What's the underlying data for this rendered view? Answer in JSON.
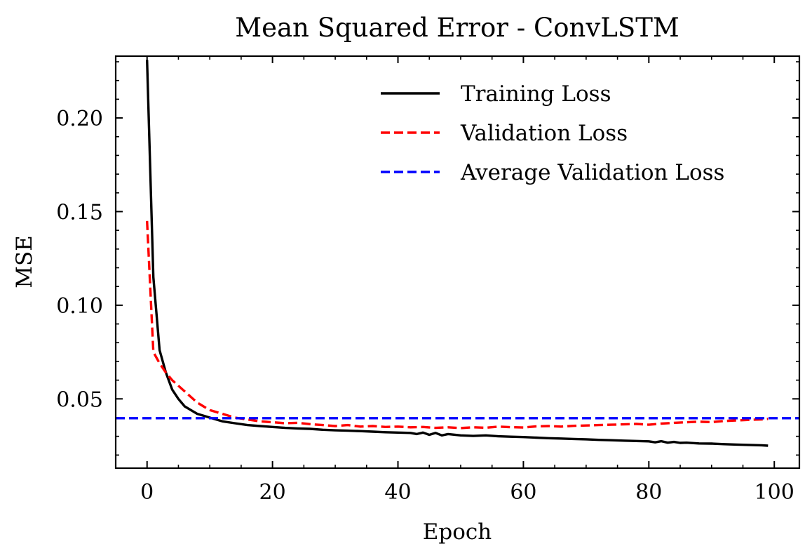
{
  "chart_data": {
    "type": "line",
    "title": "Mean Squared Error - ConvLSTM",
    "xlabel": "Epoch",
    "ylabel": "MSE",
    "xlim": [
      -5,
      104
    ],
    "ylim": [
      0.013,
      0.233
    ],
    "x_ticks": [
      0,
      20,
      40,
      60,
      80,
      100
    ],
    "x_tick_labels": [
      "0",
      "20",
      "40",
      "60",
      "80",
      "100"
    ],
    "y_ticks": [
      0.05,
      0.1,
      0.15,
      0.2
    ],
    "y_tick_labels": [
      "0.05",
      "0.10",
      "0.15",
      "0.20"
    ],
    "grid": false,
    "legend_position": "top-right",
    "series": [
      {
        "name": "Training Loss",
        "style": "solid",
        "color": "#000000",
        "x": [
          0,
          1,
          2,
          3,
          4,
          5,
          6,
          7,
          8,
          9,
          10,
          12,
          14,
          16,
          18,
          20,
          22,
          24,
          26,
          28,
          30,
          32,
          34,
          36,
          38,
          40,
          42,
          43,
          44,
          45,
          46,
          47,
          48,
          50,
          52,
          54,
          56,
          58,
          60,
          62,
          64,
          66,
          68,
          70,
          72,
          74,
          76,
          78,
          80,
          81,
          82,
          83,
          84,
          85,
          86,
          88,
          90,
          92,
          94,
          96,
          98,
          99
        ],
        "values": [
          0.231,
          0.115,
          0.076,
          0.064,
          0.055,
          0.05,
          0.046,
          0.044,
          0.042,
          0.041,
          0.04,
          0.038,
          0.037,
          0.036,
          0.0355,
          0.035,
          0.0345,
          0.0342,
          0.034,
          0.0335,
          0.0332,
          0.033,
          0.0328,
          0.0325,
          0.0322,
          0.032,
          0.0318,
          0.0312,
          0.032,
          0.0308,
          0.0318,
          0.0305,
          0.0312,
          0.0305,
          0.0302,
          0.0305,
          0.03,
          0.0298,
          0.0296,
          0.0293,
          0.029,
          0.0288,
          0.0286,
          0.0284,
          0.0281,
          0.0279,
          0.0277,
          0.0275,
          0.0273,
          0.0268,
          0.0274,
          0.0266,
          0.027,
          0.0265,
          0.0266,
          0.0262,
          0.0261,
          0.0258,
          0.0256,
          0.0254,
          0.0252,
          0.025
        ]
      },
      {
        "name": "Validation Loss",
        "style": "dashed",
        "color": "#ff0000",
        "x": [
          0,
          1,
          2,
          3,
          4,
          5,
          6,
          7,
          8,
          9,
          10,
          12,
          14,
          16,
          18,
          20,
          22,
          24,
          26,
          28,
          30,
          32,
          34,
          36,
          38,
          40,
          42,
          44,
          46,
          48,
          50,
          52,
          54,
          56,
          58,
          60,
          62,
          64,
          66,
          68,
          70,
          72,
          74,
          76,
          78,
          80,
          82,
          84,
          86,
          88,
          90,
          92,
          94,
          96,
          98,
          99
        ],
        "values": [
          0.145,
          0.075,
          0.069,
          0.064,
          0.06,
          0.057,
          0.054,
          0.051,
          0.048,
          0.046,
          0.044,
          0.042,
          0.04,
          0.039,
          0.038,
          0.0375,
          0.037,
          0.0372,
          0.0365,
          0.036,
          0.0355,
          0.036,
          0.0352,
          0.0355,
          0.035,
          0.0352,
          0.0348,
          0.035,
          0.0345,
          0.0348,
          0.0344,
          0.0348,
          0.0346,
          0.0352,
          0.0349,
          0.0347,
          0.0353,
          0.0355,
          0.0352,
          0.0356,
          0.0358,
          0.036,
          0.0362,
          0.0364,
          0.0366,
          0.0362,
          0.0368,
          0.0372,
          0.0375,
          0.0378,
          0.0376,
          0.0382,
          0.0385,
          0.0388,
          0.039,
          0.0393
        ]
      },
      {
        "name": "Average Validation Loss",
        "style": "dashed",
        "color": "#0000ff",
        "x": [
          -5,
          104
        ],
        "values": [
          0.0397,
          0.0397
        ]
      }
    ]
  }
}
